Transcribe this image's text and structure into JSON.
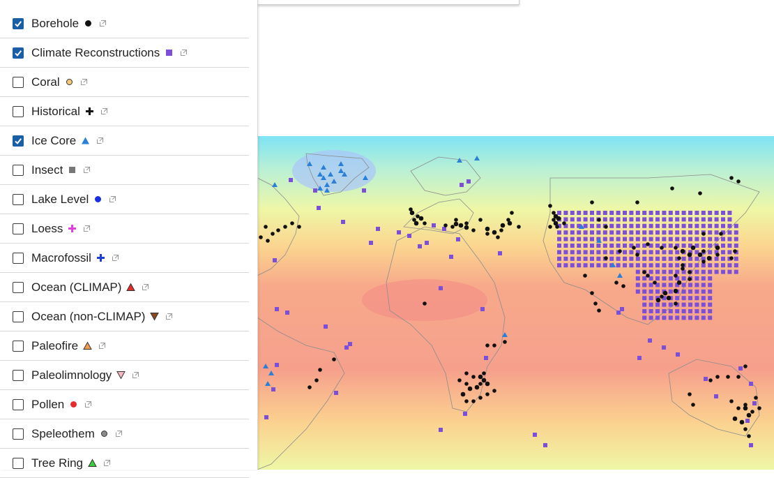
{
  "legend": {
    "items": [
      {
        "label": "Borehole",
        "checked": true,
        "symbol": "circle",
        "color": "#111111"
      },
      {
        "label": "Climate Reconstructions",
        "checked": true,
        "symbol": "square",
        "color": "#7b4fd8"
      },
      {
        "label": "Coral",
        "checked": false,
        "symbol": "circle-outline",
        "color": "#f4c77a"
      },
      {
        "label": "Historical",
        "checked": false,
        "symbol": "plus",
        "color": "#111111"
      },
      {
        "label": "Ice Core",
        "checked": true,
        "symbol": "triangle",
        "color": "#2a7fd6"
      },
      {
        "label": "Insect",
        "checked": false,
        "symbol": "square",
        "color": "#777777"
      },
      {
        "label": "Lake Level",
        "checked": false,
        "symbol": "circle",
        "color": "#1a2fe0"
      },
      {
        "label": "Loess",
        "checked": false,
        "symbol": "plus",
        "color": "#e040e0"
      },
      {
        "label": "Macrofossil",
        "checked": false,
        "symbol": "plus",
        "color": "#1a3fd8"
      },
      {
        "label": "Ocean (CLIMAP)",
        "checked": false,
        "symbol": "triangle-outline",
        "color": "#e52d2d"
      },
      {
        "label": "Ocean (non-CLIMAP)",
        "checked": false,
        "symbol": "triangle-down-outline",
        "color": "#8a4a1d"
      },
      {
        "label": "Paleofire",
        "checked": false,
        "symbol": "triangle-outline",
        "color": "#f59a4a"
      },
      {
        "label": "Paleolimnology",
        "checked": false,
        "symbol": "triangle-down-outline",
        "color": "#f7b7c0"
      },
      {
        "label": "Pollen",
        "checked": false,
        "symbol": "circle",
        "color": "#e52d2d"
      },
      {
        "label": "Speleothem",
        "checked": false,
        "symbol": "circle-outline",
        "color": "#8a8a8a"
      },
      {
        "label": "Tree Ring",
        "checked": false,
        "symbol": "triangle-outline",
        "color": "#3ccf3c"
      }
    ]
  },
  "map": {
    "heatmap_colors": [
      "#7fe3f5",
      "#b8f0d8",
      "#f1f7a8",
      "#fbd28f",
      "#f7a98a",
      "#f59a8c"
    ],
    "borehole_color": "#111111",
    "reconstruction_color": "#7b4fd8",
    "icecore_color": "#2a7fd6"
  }
}
